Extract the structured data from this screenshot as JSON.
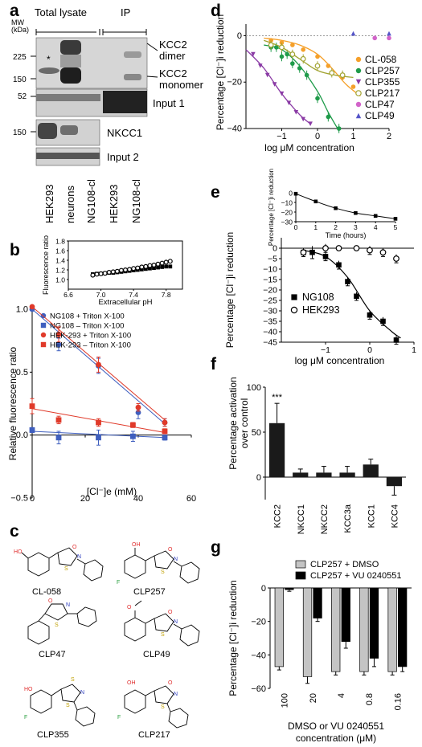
{
  "panels": {
    "a": {
      "letter": "a",
      "group_labels": [
        "Total lysate",
        "IP"
      ],
      "mw_unit": "MW\n(kDa)",
      "mw_markers": [
        "225",
        "150",
        "52",
        "150"
      ],
      "band_labels": [
        "KCC2\ndimer",
        "KCC2\nmonomer",
        "Input 1",
        "NKCC1",
        "Input 2"
      ],
      "asterisk": "*",
      "lanes": [
        "HEK293",
        "neurons",
        "NG108-cl",
        "HEK293",
        "NG108-cl"
      ]
    },
    "b": {
      "letter": "b"
    },
    "c": {
      "letter": "c",
      "compounds": [
        "CL-058",
        "CLP257",
        "CLP47",
        "CLP49",
        "CLP355",
        "CLP217"
      ]
    },
    "d": {
      "letter": "d"
    },
    "e": {
      "letter": "e"
    },
    "f": {
      "letter": "f"
    },
    "g": {
      "letter": "g"
    }
  },
  "chart_data": [
    {
      "id": "b-inset",
      "type": "scatter",
      "xlabel": "Extracellular pH",
      "ylabel": "Fluorescence ratio",
      "xlim": [
        6.6,
        8.0
      ],
      "ylim": [
        0.8,
        1.8
      ],
      "xticks": [
        "6.6",
        "7.0",
        "7.4",
        "7.8"
      ],
      "yticks": [
        "1.0",
        "1.2",
        "1.4",
        "1.6",
        "1.8"
      ],
      "series": [
        {
          "marker": "square-filled",
          "x": [
            6.9,
            6.95,
            7.0,
            7.05,
            7.1,
            7.15,
            7.2,
            7.25,
            7.3,
            7.35,
            7.4,
            7.45,
            7.5,
            7.55,
            7.6,
            7.65,
            7.7,
            7.75,
            7.8,
            7.85
          ],
          "y": [
            1.11,
            1.12,
            1.12,
            1.13,
            1.14,
            1.14,
            1.15,
            1.16,
            1.17,
            1.18,
            1.19,
            1.2,
            1.21,
            1.22,
            1.23,
            1.24,
            1.25,
            1.26,
            1.27,
            1.27
          ]
        },
        {
          "marker": "circle-open",
          "x": [
            6.9,
            6.95,
            7.0,
            7.05,
            7.1,
            7.15,
            7.2,
            7.25,
            7.3,
            7.35,
            7.4,
            7.45,
            7.5,
            7.55,
            7.6,
            7.65,
            7.7,
            7.75,
            7.8,
            7.85
          ],
          "y": [
            1.09,
            1.11,
            1.12,
            1.13,
            1.15,
            1.16,
            1.17,
            1.19,
            1.2,
            1.21,
            1.23,
            1.24,
            1.26,
            1.27,
            1.29,
            1.3,
            1.32,
            1.34,
            1.36,
            1.38
          ]
        }
      ]
    },
    {
      "id": "b-main",
      "type": "scatter",
      "xlabel": "[Cl⁻]e (mM)",
      "ylabel": "Relative fluorescence ratio",
      "xlim": [
        0,
        60
      ],
      "ylim": [
        -0.5,
        1.0
      ],
      "xticks": [
        "0",
        "20",
        "40",
        "60"
      ],
      "yticks": [
        "−0.5",
        "0.0",
        "0.5",
        "1.0"
      ],
      "series": [
        {
          "name": "NG108 + Triton X-100",
          "color": "#3f5fbf",
          "marker": "circle",
          "x": [
            0,
            10,
            25,
            40,
            50
          ],
          "y": [
            1.0,
            0.72,
            0.55,
            0.18,
            0.1
          ],
          "err": [
            0,
            0.05,
            0.06,
            0.05,
            0.03
          ],
          "fit": [
            [
              0,
              1.0
            ],
            [
              50,
              0.09
            ]
          ]
        },
        {
          "name": "NG108 –  Triton X-100",
          "color": "#3f5fbf",
          "marker": "square",
          "x": [
            0,
            10,
            25,
            38,
            50
          ],
          "y": [
            0.04,
            -0.02,
            -0.02,
            -0.01,
            -0.02
          ],
          "err": [
            0.02,
            0.05,
            0.06,
            0.04,
            0.02
          ],
          "fit": [
            [
              0,
              0.03
            ],
            [
              50,
              -0.02
            ]
          ]
        },
        {
          "name": "HEK-293 + Triton X-100",
          "color": "#e03a2a",
          "marker": "circle",
          "x": [
            0,
            10,
            25,
            40,
            50
          ],
          "y": [
            1.02,
            0.8,
            0.56,
            0.22,
            0.1
          ],
          "err": [
            0,
            0.06,
            0.06,
            0.03,
            0.03
          ],
          "fit": [
            [
              0,
              1.02
            ],
            [
              50,
              0.12
            ]
          ]
        },
        {
          "name": "HEK-293 –  Triton X-100",
          "color": "#e03a2a",
          "marker": "square",
          "x": [
            0,
            10,
            25,
            38,
            50
          ],
          "y": [
            0.23,
            0.12,
            0.1,
            0.08,
            0.03
          ],
          "err": [
            0.06,
            0.03,
            0.03,
            0.02,
            0.02
          ],
          "fit": [
            [
              0,
              0.21
            ],
            [
              50,
              0.02
            ]
          ]
        }
      ],
      "legend_position": "top-left"
    },
    {
      "id": "d",
      "type": "scatter",
      "xlabel": "log μM concentration",
      "ylabel": "Percentage [Cl⁻]i reduction",
      "xlim": [
        -2,
        2
      ],
      "ylim": [
        -40,
        5
      ],
      "xticks": [
        "−1",
        "0",
        "1",
        "2"
      ],
      "yticks": [
        "0",
        "−20",
        "−40"
      ],
      "series": [
        {
          "name": "CL-058",
          "color": "#f5a02a",
          "marker": "circle",
          "x": [
            -1.3,
            -1.0,
            -0.7,
            -0.4,
            0.0,
            0.3,
            0.7,
            1.0
          ],
          "y": [
            -2,
            -3,
            -4,
            -6,
            -9,
            -13,
            -18,
            -22
          ],
          "fit": [
            [
              -1.5,
              -1
            ],
            [
              -1.0,
              -2
            ],
            [
              -0.5,
              -4
            ],
            [
              0,
              -8
            ],
            [
              0.4,
              -14
            ],
            [
              0.8,
              -21
            ],
            [
              1.2,
              -26
            ]
          ]
        },
        {
          "name": "CLP257",
          "color": "#1f9b4a",
          "marker": "circle",
          "x": [
            -1.3,
            -1.15,
            -1.0,
            -0.85,
            -0.7,
            -0.5,
            -0.3,
            0.0,
            0.3,
            0.6
          ],
          "y": [
            -5,
            -5,
            -9,
            -8,
            -12,
            -14,
            -17,
            -27,
            -35,
            -40
          ],
          "err": [
            2,
            2,
            2,
            2,
            2,
            2,
            2,
            2,
            2,
            2
          ],
          "fit": [
            [
              -1.5,
              -4
            ],
            [
              -1.0,
              -6
            ],
            [
              -0.5,
              -13
            ],
            [
              0,
              -24
            ],
            [
              0.3,
              -33
            ],
            [
              0.6,
              -41
            ]
          ]
        },
        {
          "name": "CLP355",
          "color": "#8a3aa5",
          "marker": "triangle-down",
          "x": [
            -1.8,
            -1.6,
            -1.4,
            -1.2,
            -1.0,
            -0.8,
            -0.6,
            -0.4,
            -0.2
          ],
          "y": [
            -8,
            -13,
            -17,
            -21,
            -25,
            -29,
            -33,
            -36,
            -38
          ],
          "fit": [
            [
              -2,
              -6
            ],
            [
              -1.5,
              -14
            ],
            [
              -1,
              -25
            ],
            [
              -0.5,
              -34
            ],
            [
              -0.2,
              -38
            ]
          ]
        },
        {
          "name": "CLP217",
          "color": "#a1a331",
          "marker": "circle-open",
          "x": [
            -1.3,
            -1.0,
            -0.7,
            -0.4,
            0.0,
            0.4,
            0.7
          ],
          "y": [
            -4,
            -5,
            -8,
            -10,
            -13,
            -16,
            -17
          ],
          "err": [
            2,
            2,
            2,
            2,
            2,
            2,
            2
          ],
          "fit": [
            [
              -1.5,
              -2
            ],
            [
              -1,
              -5
            ],
            [
              -0.5,
              -10
            ],
            [
              0,
              -15
            ],
            [
              0.5,
              -17
            ],
            [
              1,
              -18
            ]
          ]
        },
        {
          "name": "CLP47",
          "color": "#d264c9",
          "marker": "circle",
          "x": [
            1.6,
            2.0
          ],
          "y": [
            -1,
            -1
          ]
        },
        {
          "name": "CLP49",
          "color": "#5454c8",
          "marker": "triangle-up",
          "x": [
            1.0,
            2.0
          ],
          "y": [
            1,
            1
          ]
        }
      ],
      "legend_position": "right"
    },
    {
      "id": "e-inset",
      "type": "line",
      "xlabel": "Time (hours)",
      "ylabel": "Percentage [Cl⁻]i reduction",
      "xlim": [
        0,
        5
      ],
      "ylim": [
        -30,
        0
      ],
      "xticks": [
        "0",
        "1",
        "2",
        "3",
        "4",
        "5"
      ],
      "yticks": [
        "0",
        "−10",
        "−20",
        "−30"
      ],
      "x": [
        0,
        1,
        2,
        3,
        4,
        5
      ],
      "y": [
        -1,
        -9,
        -16,
        -21,
        -24,
        -27
      ]
    },
    {
      "id": "e-main",
      "type": "scatter",
      "xlabel": "log μM concentration",
      "ylabel": "Percentage [Cl⁻]i reduction",
      "xlim": [
        -2,
        1
      ],
      "ylim": [
        -45,
        5
      ],
      "xticks": [
        "−1",
        "0",
        "1"
      ],
      "yticks": [
        "0",
        "−5",
        "−10",
        "−15",
        "−20",
        "−25",
        "−30",
        "−35",
        "−40",
        "−45"
      ],
      "series": [
        {
          "name": "NG108",
          "marker": "square-filled",
          "x": [
            -1.5,
            -1.3,
            -1.0,
            -0.7,
            -0.5,
            -0.3,
            0.0,
            0.3,
            0.6
          ],
          "y": [
            -2,
            -2,
            -4,
            -8,
            -16,
            -23,
            -32,
            -35,
            -44
          ],
          "err": [
            2,
            3,
            2,
            2,
            2,
            2,
            2,
            2,
            2
          ],
          "fit": [
            [
              -1.5,
              -1
            ],
            [
              -1,
              -4
            ],
            [
              -0.5,
              -14
            ],
            [
              0,
              -30
            ],
            [
              0.5,
              -40
            ],
            [
              0.7,
              -43
            ]
          ]
        },
        {
          "name": "HEK293",
          "marker": "circle-open",
          "x": [
            -1.5,
            -1.0,
            -0.7,
            -0.3,
            0.0,
            0.3,
            0.6
          ],
          "y": [
            -2,
            0,
            0,
            0,
            -1,
            -2,
            -5
          ],
          "err": [
            2,
            2,
            1,
            1,
            2,
            2,
            2
          ]
        }
      ],
      "legend_position": "left"
    },
    {
      "id": "f",
      "type": "bar",
      "ylabel": "Percentage activation over control",
      "ylim": [
        -25,
        100
      ],
      "yticks": [
        "0",
        "50",
        "100"
      ],
      "categories": [
        "KCC2",
        "NKCC1",
        "NKCC2",
        "KCC3a",
        "KCC1",
        "KCC4"
      ],
      "values": [
        60,
        5,
        5,
        5,
        14,
        -10
      ],
      "err": [
        22,
        4,
        7,
        7,
        6,
        10
      ],
      "annotation": "***"
    },
    {
      "id": "g",
      "type": "bar",
      "xlabel": "DMSO or VU 0240551 concentration (μM)",
      "ylabel": "Percentage [Cl⁻]i reduction",
      "ylim": [
        -60,
        0
      ],
      "yticks": [
        "0",
        "−20",
        "−40",
        "−60"
      ],
      "categories": [
        "100",
        "20",
        "4",
        "0.8",
        "0.16"
      ],
      "series": [
        {
          "name": "CLP257 + DMSO",
          "color": "#c4c4c4",
          "values": [
            -47,
            -53,
            -50,
            -50,
            -50
          ],
          "err": [
            2,
            4,
            2,
            2,
            2
          ]
        },
        {
          "name": "CLP257 + VU 0240551",
          "color": "#000000",
          "values": [
            -1,
            -18,
            -32,
            -42,
            -47
          ],
          "err": [
            1,
            2,
            4,
            5,
            3
          ]
        }
      ],
      "legend_position": "top"
    }
  ]
}
